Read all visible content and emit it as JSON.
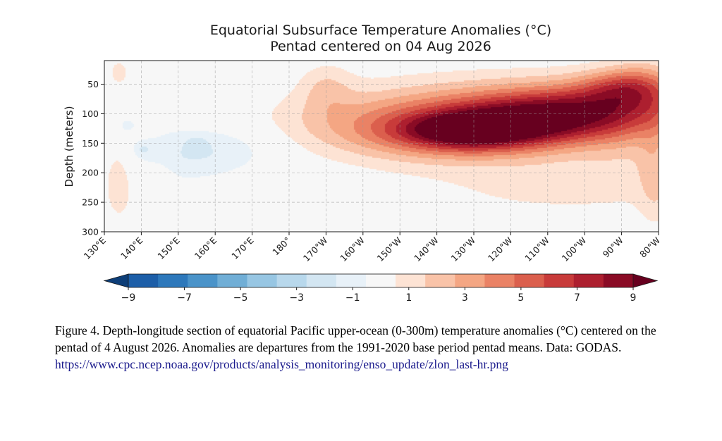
{
  "chart_data": {
    "type": "heatmap",
    "title": "Equatorial Subsurface Temperature Anomalies (°C)",
    "subtitle": "Pentad centered on 04 Aug 2026",
    "ylabel": "Depth (meters)",
    "xlabel": "",
    "x_ticks": [
      {
        "lon": 130,
        "label": "130°E"
      },
      {
        "lon": 140,
        "label": "140°E"
      },
      {
        "lon": 150,
        "label": "150°E"
      },
      {
        "lon": 160,
        "label": "160°E"
      },
      {
        "lon": 170,
        "label": "170°E"
      },
      {
        "lon": 180,
        "label": "180°"
      },
      {
        "lon": 190,
        "label": "170°W"
      },
      {
        "lon": 200,
        "label": "160°W"
      },
      {
        "lon": 210,
        "label": "150°W"
      },
      {
        "lon": 220,
        "label": "140°W"
      },
      {
        "lon": 230,
        "label": "130°W"
      },
      {
        "lon": 240,
        "label": "120°W"
      },
      {
        "lon": 250,
        "label": "110°W"
      },
      {
        "lon": 260,
        "label": "100°W"
      },
      {
        "lon": 270,
        "label": "90°W"
      },
      {
        "lon": 280,
        "label": "80°W"
      }
    ],
    "y_ticks": [
      {
        "depth": 50,
        "label": "50"
      },
      {
        "depth": 100,
        "label": "100"
      },
      {
        "depth": 150,
        "label": "150"
      },
      {
        "depth": 200,
        "label": "200"
      },
      {
        "depth": 250,
        "label": "250"
      },
      {
        "depth": 300,
        "label": "300"
      }
    ],
    "xlim": [
      130,
      280
    ],
    "ylim": [
      300,
      10
    ],
    "grid": true,
    "colorbar": {
      "levels": [
        -10,
        -9,
        -8,
        -7,
        -6,
        -5,
        -4,
        -3,
        -2,
        -1,
        1,
        2,
        3,
        4,
        5,
        6,
        7,
        8,
        9,
        10
      ],
      "colors": [
        "#0d3e78",
        "#1c5ea8",
        "#2d78bb",
        "#4a93c9",
        "#70aed6",
        "#97c6e3",
        "#b8d8ec",
        "#d3e6f2",
        "#e8f1f8",
        "#f7f7f7",
        "#fde3d4",
        "#f9c3a8",
        "#f4a683",
        "#ea8265",
        "#db5f4d",
        "#c83b3a",
        "#ad1f2f",
        "#8a0b25",
        "#67001f"
      ],
      "tick_labels": [
        {
          "value": -9,
          "label": "−9"
        },
        {
          "value": -7,
          "label": "−7"
        },
        {
          "value": -5,
          "label": "−5"
        },
        {
          "value": -3,
          "label": "−3"
        },
        {
          "value": -1,
          "label": "−1"
        },
        {
          "value": 1,
          "label": "1"
        },
        {
          "value": 3,
          "label": "3"
        },
        {
          "value": 5,
          "label": "5"
        },
        {
          "value": 7,
          "label": "7"
        },
        {
          "value": 9,
          "label": "9"
        }
      ],
      "extend": "both"
    },
    "anomaly_features": [
      {
        "lon": 248,
        "depth": 110,
        "sigma_lon": 26,
        "sigma_depth": 35,
        "tilt": -0.55,
        "amp": 9.8
      },
      {
        "lon": 228,
        "depth": 130,
        "sigma_lon": 12,
        "sigma_depth": 20,
        "tilt": 0,
        "amp": 4.5
      },
      {
        "lon": 270,
        "depth": 55,
        "sigma_lon": 8,
        "sigma_depth": 22,
        "tilt": 0,
        "amp": 3.2
      },
      {
        "lon": 205,
        "depth": 115,
        "sigma_lon": 22,
        "sigma_depth": 35,
        "tilt": 0,
        "amp": 2.2
      },
      {
        "lon": 232,
        "depth": 75,
        "sigma_lon": 30,
        "sigma_depth": 40,
        "tilt": 0,
        "amp": 1.6
      },
      {
        "lon": 276,
        "depth": 40,
        "sigma_lon": 6,
        "sigma_depth": 30,
        "tilt": 0,
        "amp": 1.4
      },
      {
        "lon": 272,
        "depth": 150,
        "sigma_lon": 8,
        "sigma_depth": 40,
        "tilt": 0,
        "amp": 0.9
      },
      {
        "lon": 255,
        "depth": 220,
        "sigma_lon": 32,
        "sigma_depth": 45,
        "tilt": 0,
        "amp": 1.3
      },
      {
        "lon": 190,
        "depth": 55,
        "sigma_lon": 5,
        "sigma_depth": 30,
        "tilt": 0,
        "amp": 1.5
      },
      {
        "lon": 134,
        "depth": 210,
        "sigma_lon": 3.5,
        "sigma_depth": 60,
        "tilt": 0,
        "amp": 1.6
      },
      {
        "lon": 134,
        "depth": 30,
        "sigma_lon": 2.5,
        "sigma_depth": 20,
        "tilt": 0,
        "amp": 1.3
      },
      {
        "lon": 145,
        "depth": 230,
        "sigma_lon": 2.5,
        "sigma_depth": 30,
        "tilt": 0,
        "amp": 1.2
      },
      {
        "lon": 279,
        "depth": 200,
        "sigma_lon": 3,
        "sigma_depth": 60,
        "tilt": 0,
        "amp": 1.6
      },
      {
        "lon": 150,
        "depth": 170,
        "sigma_lon": 10,
        "sigma_depth": 35,
        "tilt": 0,
        "amp": -1.6
      },
      {
        "lon": 165,
        "depth": 160,
        "sigma_lon": 10,
        "sigma_depth": 30,
        "tilt": 0,
        "amp": -1.3
      },
      {
        "lon": 155,
        "depth": 150,
        "sigma_lon": 2,
        "sigma_depth": 8,
        "tilt": 0,
        "amp": -1.0
      },
      {
        "lon": 136,
        "depth": 120,
        "sigma_lon": 2,
        "sigma_depth": 10,
        "tilt": 0,
        "amp": -1.6
      },
      {
        "lon": 140,
        "depth": 160,
        "sigma_lon": 2,
        "sigma_depth": 10,
        "tilt": 0,
        "amp": -1.4
      }
    ]
  },
  "caption": {
    "text": "Figure 4. Depth-longitude section of equatorial Pacific upper-ocean (0-300m) temperature anomalies (°C) centered on the pentad of 4 August 2026. Anomalies are departures from the 1991-2020 base period pentad means. Data: GODAS.",
    "link": "https://www.cpc.ncep.noaa.gov/products/analysis_monitoring/enso_update/zlon_last-hr.png"
  }
}
